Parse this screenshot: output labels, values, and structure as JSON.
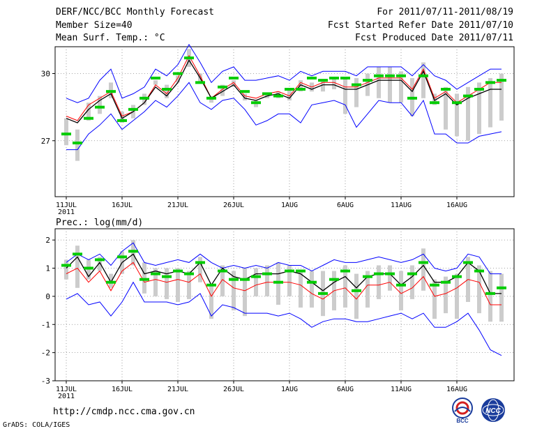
{
  "header": {
    "title": "DERF/NCC/BCC Monthly Forecast",
    "member_size": "Member Size=40",
    "variable": "Mean Surf. Temp.: °C",
    "period": "For 2011/07/11-2011/08/19",
    "fcst_started": "Fcst Started Refer Date 2011/07/10",
    "fcst_produced": "Fcst Produced Date 2011/07/11"
  },
  "footer": {
    "url": "http://cmdp.ncc.cma.gov.cn",
    "grads": "GrADS: COLA/IGES"
  },
  "logos": {
    "bcc": "BCC",
    "ncc": "NCC"
  },
  "colors": {
    "max_min": "#0000ff",
    "mean": "#000000",
    "median": "#ff0000",
    "obs": "#00cc00",
    "spread": "#cccccc"
  },
  "chart_data": [
    {
      "type": "line",
      "title": "Mean Surf. Temp.: °C",
      "x_ticks": [
        "11JUL",
        "16JUL",
        "21JUL",
        "26JUL",
        "1AUG",
        "6AUG",
        "11AUG",
        "16AUG"
      ],
      "x_year_label": "2011",
      "ylim": [
        24.5,
        31.2
      ],
      "yticks": [
        27,
        30
      ],
      "series": [
        {
          "name": "max",
          "values": [
            28.9,
            28.7,
            28.9,
            29.7,
            30.2,
            28.9,
            29.1,
            29.4,
            30.2,
            29.9,
            30.4,
            31.3,
            30.5,
            29.6,
            30.1,
            30.3,
            29.7,
            29.7,
            29.8,
            29.9,
            29.7,
            30.1,
            29.9,
            30.1,
            30.1,
            30.1,
            29.9,
            30.3,
            30.3,
            30.3,
            30.3,
            29.9,
            30.4,
            29.9,
            29.7,
            29.3,
            29.6,
            29.9,
            30.2,
            30.2
          ]
        },
        {
          "name": "median",
          "values": [
            28.1,
            27.9,
            28.6,
            28.9,
            29.2,
            28.1,
            28.3,
            28.7,
            29.5,
            29.1,
            29.8,
            30.8,
            29.9,
            28.9,
            29.3,
            29.6,
            29.0,
            28.9,
            29.1,
            29.2,
            29.0,
            29.6,
            29.4,
            29.6,
            29.6,
            29.4,
            29.4,
            29.6,
            29.8,
            29.8,
            29.8,
            29.3,
            30.2,
            28.9,
            29.2,
            28.7,
            29.0,
            29.3,
            29.6,
            29.6
          ]
        },
        {
          "name": "mean",
          "values": [
            28.0,
            27.8,
            28.4,
            28.8,
            29.1,
            28.0,
            28.3,
            28.7,
            29.4,
            29.0,
            29.6,
            30.6,
            29.8,
            28.9,
            29.2,
            29.5,
            28.9,
            28.8,
            29.0,
            29.1,
            28.9,
            29.5,
            29.3,
            29.5,
            29.5,
            29.3,
            29.3,
            29.5,
            29.7,
            29.7,
            29.7,
            29.2,
            30.1,
            28.8,
            29.1,
            28.6,
            28.9,
            29.1,
            29.3,
            29.3
          ]
        },
        {
          "name": "min",
          "values": [
            26.6,
            26.6,
            27.3,
            27.7,
            28.2,
            27.5,
            27.9,
            28.3,
            28.8,
            28.5,
            29.0,
            29.6,
            28.7,
            28.4,
            28.8,
            28.9,
            28.4,
            27.7,
            27.9,
            28.2,
            28.2,
            27.8,
            28.6,
            28.7,
            28.8,
            28.6,
            27.6,
            28.2,
            28.8,
            28.7,
            28.7,
            28.1,
            28.8,
            27.3,
            27.3,
            26.9,
            26.9,
            27.2,
            27.3,
            27.4
          ]
        },
        {
          "name": "obs",
          "values": [
            27.3,
            26.9,
            28.0,
            28.5,
            29.2,
            27.9,
            28.4,
            28.9,
            29.8,
            29.3,
            30.0,
            30.7,
            29.6,
            28.9,
            29.4,
            29.8,
            29.2,
            28.7,
            29.1,
            29.0,
            29.3,
            29.3,
            29.8,
            29.7,
            29.8,
            29.8,
            29.5,
            29.7,
            29.9,
            29.9,
            29.9,
            28.9,
            29.9,
            28.7,
            29.3,
            28.7,
            29.0,
            29.3,
            29.6,
            29.7
          ]
        }
      ],
      "spread_bars": [
        [
          26.8,
          28.0
        ],
        [
          26.1,
          27.5
        ],
        [
          27.9,
          28.7
        ],
        [
          28.2,
          29.0
        ],
        [
          28.9,
          29.6
        ],
        [
          27.8,
          28.3
        ],
        [
          28.0,
          28.6
        ],
        [
          28.6,
          29.1
        ],
        [
          29.5,
          29.7
        ],
        [
          28.9,
          29.5
        ],
        [
          29.6,
          29.9
        ],
        [
          30.3,
          31.1
        ],
        [
          29.6,
          30.0
        ],
        [
          28.7,
          29.0
        ],
        [
          29.0,
          29.5
        ],
        [
          29.4,
          29.7
        ],
        [
          28.8,
          29.1
        ],
        [
          28.5,
          28.8
        ],
        [
          28.9,
          29.1
        ],
        [
          28.9,
          29.2
        ],
        [
          28.8,
          29.3
        ],
        [
          29.2,
          29.7
        ],
        [
          29.2,
          29.6
        ],
        [
          29.2,
          29.7
        ],
        [
          29.3,
          29.8
        ],
        [
          28.2,
          29.8
        ],
        [
          28.5,
          29.8
        ],
        [
          29.0,
          30.0
        ],
        [
          28.9,
          30.3
        ],
        [
          28.7,
          30.3
        ],
        [
          28.7,
          30.1
        ],
        [
          28.1,
          29.8
        ],
        [
          28.9,
          30.5
        ],
        [
          28.6,
          29.1
        ],
        [
          27.5,
          29.4
        ],
        [
          27.2,
          29.1
        ],
        [
          27.0,
          29.4
        ],
        [
          27.3,
          29.6
        ],
        [
          27.6,
          29.8
        ],
        [
          27.9,
          30.0
        ]
      ]
    },
    {
      "type": "line",
      "title": "Prec.: log(mm/d)",
      "x_ticks": [
        "11JUL",
        "16JUL",
        "21JUL",
        "26JUL",
        "1AUG",
        "6AUG",
        "11AUG",
        "16AUG"
      ],
      "x_year_label": "2011",
      "ylim": [
        -3,
        2.4
      ],
      "yticks": [
        -3,
        -2,
        -1,
        0,
        1,
        2
      ],
      "series": [
        {
          "name": "max",
          "values": [
            1.2,
            1.5,
            1.3,
            1.5,
            1.1,
            1.6,
            1.9,
            1.2,
            1.1,
            1.2,
            1.3,
            1.2,
            1.5,
            1.2,
            1.0,
            1.1,
            1.0,
            1.1,
            1.0,
            1.2,
            1.1,
            1.1,
            0.9,
            1.1,
            1.3,
            1.2,
            1.2,
            1.3,
            1.4,
            1.3,
            1.2,
            1.3,
            1.5,
            1.0,
            0.9,
            1.0,
            1.5,
            1.4,
            0.8,
            0.8
          ]
        },
        {
          "name": "mean",
          "values": [
            1.0,
            1.4,
            0.7,
            1.2,
            0.5,
            1.2,
            1.5,
            0.8,
            0.9,
            0.8,
            0.9,
            0.8,
            1.2,
            0.4,
            1.0,
            0.7,
            0.6,
            0.8,
            0.8,
            0.8,
            0.9,
            0.8,
            0.5,
            0.2,
            0.5,
            0.7,
            0.3,
            0.7,
            0.8,
            0.8,
            0.4,
            0.7,
            1.1,
            0.5,
            0.5,
            0.7,
            1.2,
            0.9,
            0.1,
            0.1
          ]
        },
        {
          "name": "median",
          "values": [
            0.8,
            1.0,
            0.5,
            0.9,
            0.2,
            0.9,
            1.2,
            0.5,
            0.6,
            0.5,
            0.6,
            0.5,
            0.8,
            0.0,
            0.6,
            0.3,
            0.2,
            0.4,
            0.5,
            0.5,
            0.5,
            0.4,
            0.1,
            -0.1,
            0.2,
            0.3,
            -0.1,
            0.4,
            0.4,
            0.5,
            0.1,
            0.3,
            0.7,
            0.0,
            0.1,
            0.3,
            0.6,
            0.5,
            -0.3,
            -0.3
          ]
        },
        {
          "name": "min",
          "values": [
            -0.1,
            0.1,
            -0.3,
            -0.2,
            -0.7,
            -0.2,
            0.5,
            -0.2,
            -0.2,
            -0.2,
            -0.3,
            -0.2,
            0.1,
            -0.7,
            -0.3,
            -0.4,
            -0.6,
            -0.6,
            -0.6,
            -0.7,
            -0.6,
            -0.8,
            -1.1,
            -0.9,
            -0.8,
            -0.8,
            -0.9,
            -0.9,
            -0.8,
            -0.7,
            -0.6,
            -0.8,
            -0.6,
            -1.1,
            -1.1,
            -0.9,
            -0.6,
            -1.2,
            -1.9,
            -2.1
          ]
        },
        {
          "name": "obs",
          "values": [
            1.1,
            1.5,
            1.0,
            1.3,
            0.5,
            1.4,
            1.6,
            0.6,
            0.8,
            0.7,
            0.9,
            0.8,
            1.2,
            0.4,
            0.9,
            0.6,
            0.6,
            0.7,
            0.8,
            0.5,
            0.9,
            0.9,
            0.5,
            0.1,
            0.6,
            0.9,
            0.2,
            0.7,
            0.8,
            0.8,
            0.4,
            0.8,
            1.2,
            0.4,
            0.5,
            0.7,
            1.2,
            0.9,
            0.1,
            0.3
          ]
        }
      ],
      "spread_bars": [
        [
          0.6,
          1.3
        ],
        [
          0.3,
          1.8
        ],
        [
          0.6,
          1.3
        ],
        [
          0.9,
          1.4
        ],
        [
          0.3,
          0.8
        ],
        [
          0.8,
          1.6
        ],
        [
          1.1,
          2.0
        ],
        [
          0.1,
          1.2
        ],
        [
          0.0,
          1.0
        ],
        [
          -0.1,
          1.0
        ],
        [
          -0.2,
          1.0
        ],
        [
          -0.1,
          0.9
        ],
        [
          0.5,
          1.4
        ],
        [
          -0.8,
          0.4
        ],
        [
          0.0,
          1.1
        ],
        [
          -0.5,
          0.9
        ],
        [
          -0.7,
          1.0
        ],
        [
          0.0,
          1.0
        ],
        [
          0.0,
          1.1
        ],
        [
          -0.3,
          1.2
        ],
        [
          0.0,
          1.1
        ],
        [
          -0.4,
          0.9
        ],
        [
          -0.4,
          0.9
        ],
        [
          -0.7,
          0.9
        ],
        [
          -0.5,
          0.9
        ],
        [
          -0.4,
          1.1
        ],
        [
          -0.8,
          0.8
        ],
        [
          -0.4,
          0.9
        ],
        [
          -0.1,
          1.1
        ],
        [
          0.2,
          1.1
        ],
        [
          -0.5,
          0.9
        ],
        [
          -0.1,
          1.1
        ],
        [
          0.2,
          1.7
        ],
        [
          -0.8,
          0.6
        ],
        [
          -0.6,
          0.7
        ],
        [
          -0.8,
          0.8
        ],
        [
          -0.2,
          1.4
        ],
        [
          -0.6,
          1.1
        ],
        [
          -0.9,
          0.9
        ],
        [
          -0.9,
          0.8
        ]
      ]
    }
  ]
}
